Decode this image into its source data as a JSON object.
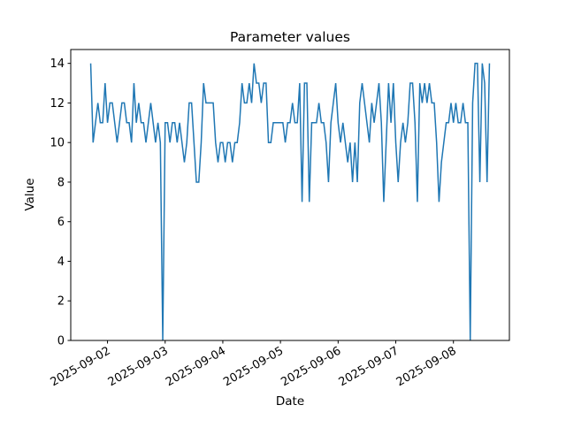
{
  "window": {
    "background": "#ffffff"
  },
  "chart_data": {
    "type": "line",
    "title": "Parameter values",
    "xlabel": "Date",
    "ylabel": "Value",
    "series_color": "#1f77b4",
    "axis_color": "#000000",
    "grid": false,
    "legend": "none",
    "x_unit": "hours",
    "x_start": "2025-09-01 17:00",
    "x_step_hours": 1,
    "x_tick_labels": [
      "2025-09-02",
      "2025-09-03",
      "2025-09-04",
      "2025-09-05",
      "2025-09-06",
      "2025-09-07",
      "2025-09-08"
    ],
    "x_tick_hour_offsets": [
      7,
      31,
      55,
      79,
      103,
      127,
      151
    ],
    "x_tick_rotation_deg": -30,
    "y_ticks": [
      0,
      2,
      4,
      6,
      8,
      10,
      12,
      14
    ],
    "ylim": [
      0,
      14.7
    ],
    "xlim_hours": [
      -8.3,
      174.3
    ],
    "values": [
      14,
      10,
      11,
      12,
      11,
      11,
      13,
      11,
      12,
      12,
      11,
      10,
      11,
      12,
      12,
      11,
      11,
      10,
      13,
      11,
      12,
      11,
      11,
      10,
      11,
      12,
      11,
      10,
      11,
      10,
      0,
      11,
      11,
      10,
      11,
      11,
      10,
      11,
      10,
      9,
      10,
      12,
      12,
      10,
      8,
      8,
      10,
      13,
      12,
      12,
      12,
      12,
      10,
      9,
      10,
      10,
      9,
      10,
      10,
      9,
      10,
      10,
      11,
      13,
      12,
      12,
      13,
      12,
      14,
      13,
      13,
      12,
      13,
      13,
      10,
      10,
      11,
      11,
      11,
      11,
      11,
      10,
      11,
      11,
      12,
      11,
      11,
      13,
      7,
      13,
      13,
      7,
      11,
      11,
      11,
      12,
      11,
      11,
      10,
      8,
      11,
      12,
      13,
      11,
      10,
      11,
      10,
      9,
      10,
      8,
      10,
      8,
      12,
      13,
      12,
      11,
      10,
      12,
      11,
      12,
      13,
      11,
      7,
      10,
      13,
      11,
      13,
      10,
      8,
      10,
      11,
      10,
      11,
      13,
      13,
      11,
      7,
      13,
      12,
      13,
      12,
      13,
      12,
      12,
      10,
      7,
      9,
      10,
      11,
      11,
      12,
      11,
      12,
      11,
      11,
      12,
      11,
      11,
      0,
      12,
      14,
      14,
      8,
      14,
      13,
      8,
      14
    ]
  }
}
